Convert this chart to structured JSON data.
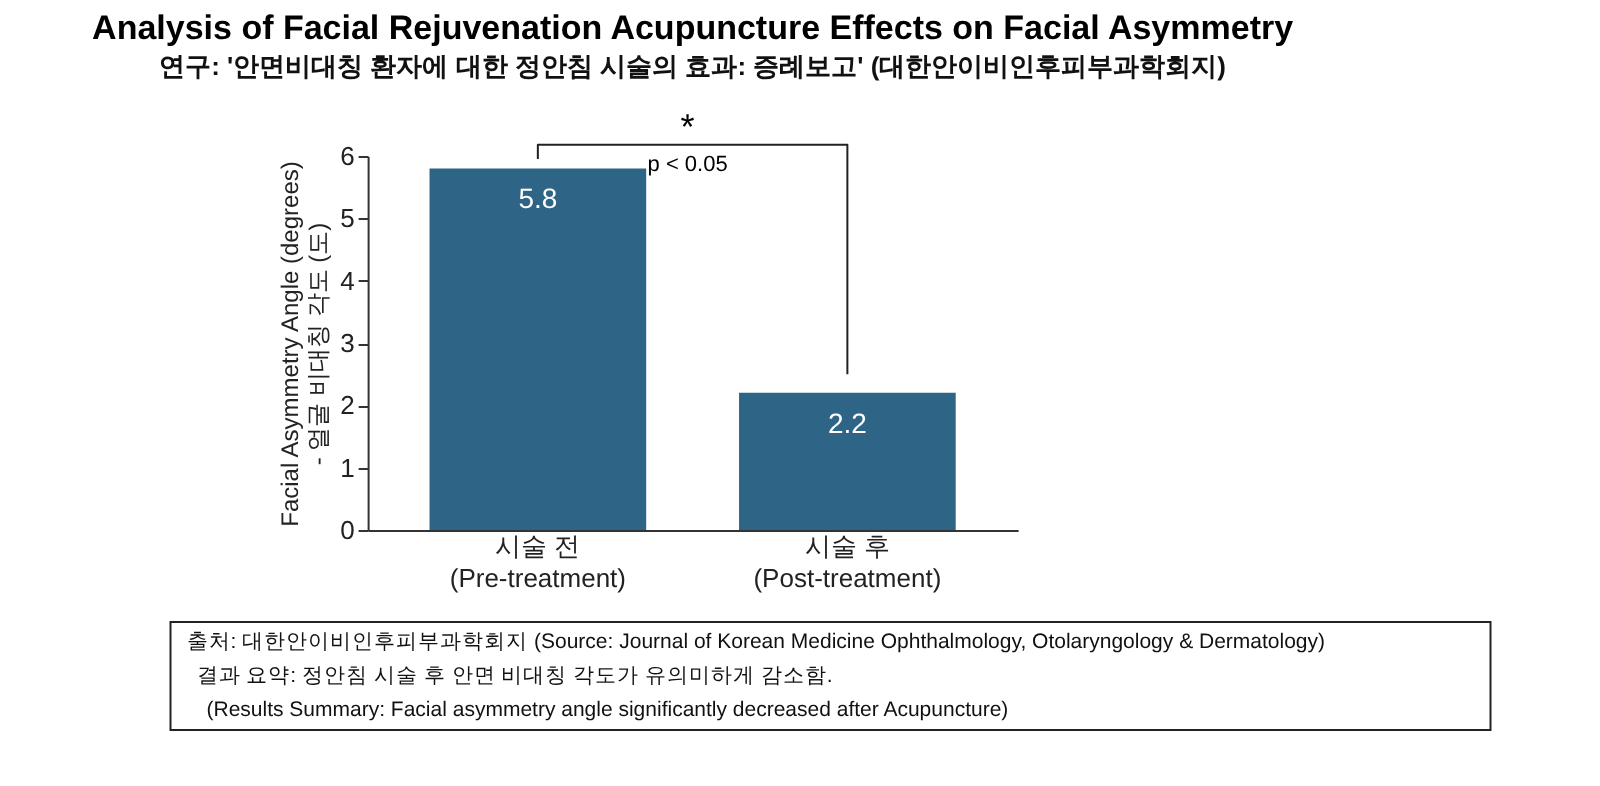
{
  "chart_data": {
    "type": "bar",
    "title": "Analysis of Facial Rejuvenation Acupuncture Effects on Facial Asymmetry",
    "subtitle": "연구: '안면비대칭 환자에 대한 정안침 시술의 효과: 증례보고' (대한안이비인후피부과학회지)",
    "categories": [
      "시술 전\n(Pre-treatment)",
      "시술 후\n(Post-treatment)"
    ],
    "values": [
      5.8,
      2.2
    ],
    "color": "#2e6485",
    "ylabel": "Facial Asymmetry Angle (degrees)\n- 얼굴 비대칭 각도 (도)",
    "ylim": [
      0,
      6
    ],
    "yticks": [
      0,
      1,
      2,
      3,
      4,
      5,
      6
    ],
    "data_labels": true,
    "grid": false,
    "annotations": [
      "*",
      "p < 0.05",
      "출처: 대한안이비인후피부과학회지 (Source: Journal of Korean Medicine Ophthalmology, Otolaryngology & Dermatology)",
      "결과 요약: 정안침 시술 후 안면 비대칭 각도가 유의미하게 감소함.",
      "(Results Summary: Facial asymmetry angle significantly decreased after Acupuncture)"
    ]
  }
}
